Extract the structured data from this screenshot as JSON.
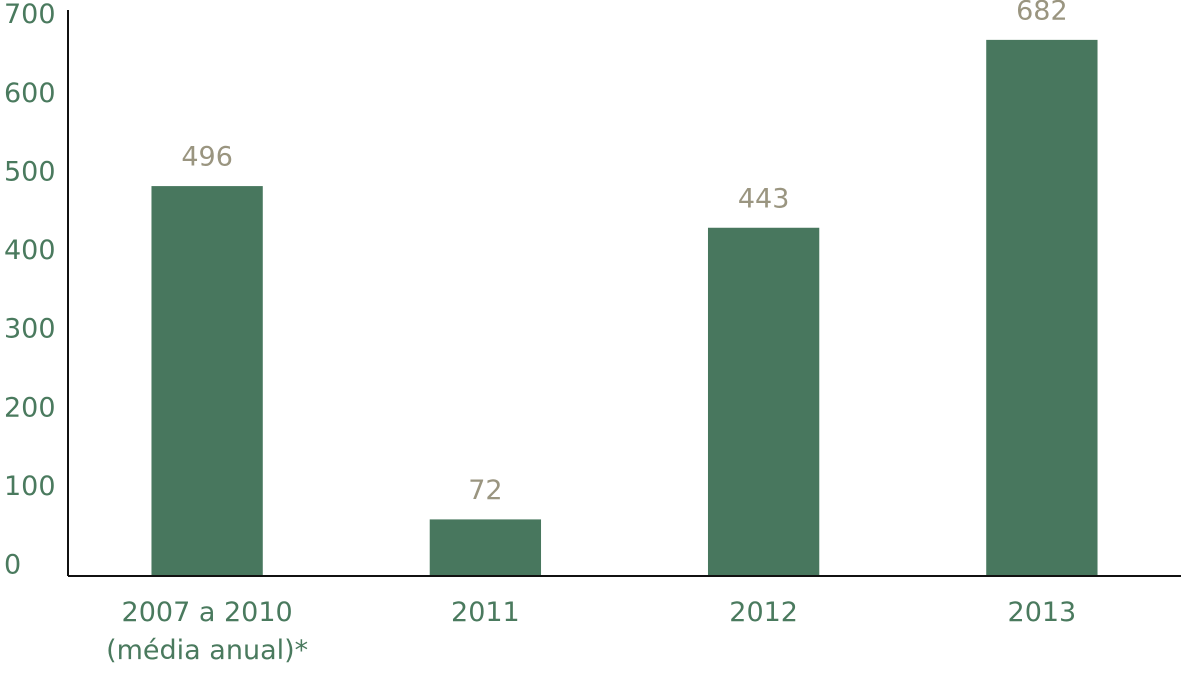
{
  "chart_data": {
    "type": "bar",
    "categories": [
      "2007 a 2010 (média anual)*",
      "2011",
      "2012",
      "2013"
    ],
    "values": [
      496,
      72,
      443,
      682
    ],
    "color": "#48775e",
    "ylim": [
      0,
      720
    ],
    "yticks": [
      0,
      100,
      200,
      300,
      400,
      500,
      600,
      700
    ]
  }
}
